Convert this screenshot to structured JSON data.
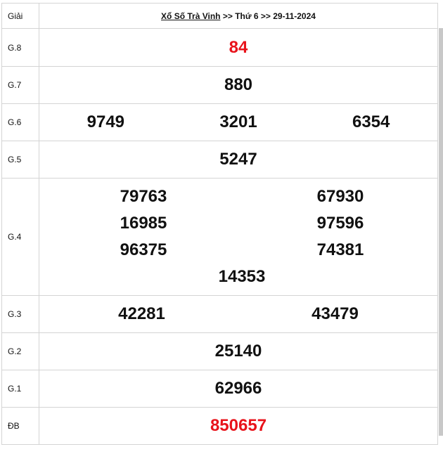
{
  "header": {
    "label_col": "Giải",
    "title_link": "Xổ Số Trà Vinh",
    "sep1": " >> ",
    "day": "Thứ 6",
    "sep2": " >> ",
    "date": "29-11-2024"
  },
  "prizes": {
    "g8": {
      "label": "G.8",
      "numbers": [
        "84"
      ]
    },
    "g7": {
      "label": "G.7",
      "numbers": [
        "880"
      ]
    },
    "g6": {
      "label": "G.6",
      "numbers": [
        "9749",
        "3201",
        "6354"
      ]
    },
    "g5": {
      "label": "G.5",
      "numbers": [
        "5247"
      ]
    },
    "g4": {
      "label": "G.4",
      "numbers": [
        "79763",
        "67930",
        "16985",
        "97596",
        "96375",
        "74381",
        "14353"
      ]
    },
    "g3": {
      "label": "G.3",
      "numbers": [
        "42281",
        "43479"
      ]
    },
    "g2": {
      "label": "G.2",
      "numbers": [
        "25140"
      ]
    },
    "g1": {
      "label": "G.1",
      "numbers": [
        "62966"
      ]
    },
    "db": {
      "label": "ĐB",
      "numbers": [
        "850657"
      ]
    }
  },
  "colors": {
    "highlight": "#e8131b",
    "text": "#111111",
    "border": "#d4d4d4"
  }
}
